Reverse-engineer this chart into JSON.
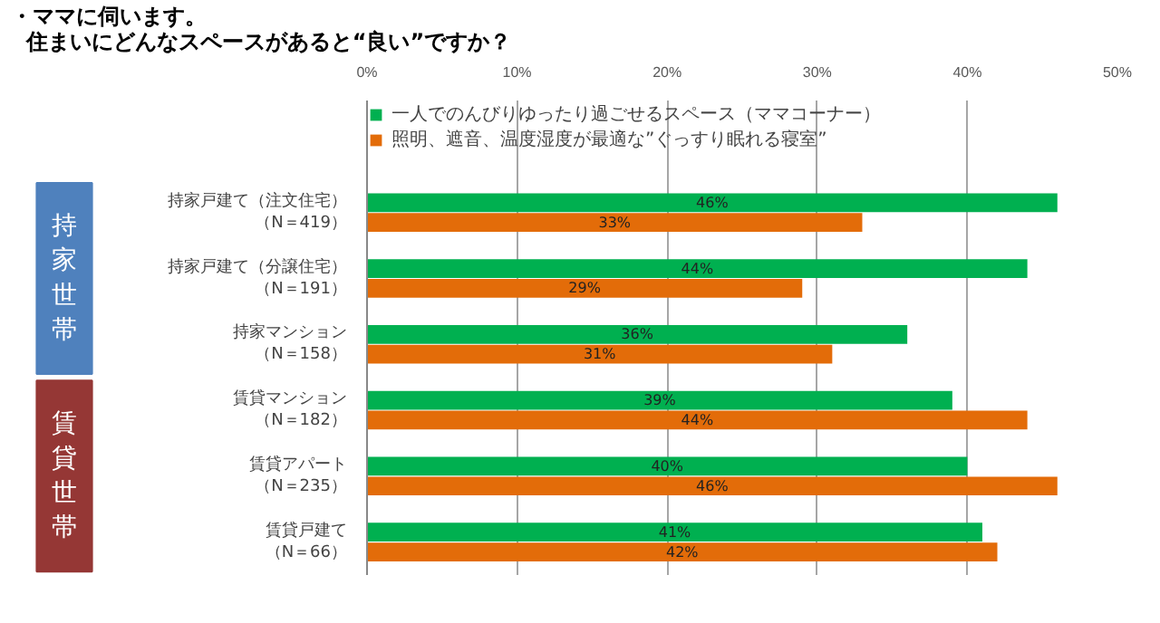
{
  "chart_data": {
    "type": "bar",
    "orientation": "horizontal",
    "title": "・ママに伺います。住まいにどんなスペースがあると“良い”ですか？",
    "categories": [
      "持家戸建て（注文住宅）（N＝419）",
      "持家戸建て（分譲住宅）（N＝191）",
      "持家マンション（N＝158）",
      "賃貸マンション（N＝182）",
      "賃貸アパート（N＝235）",
      "賃貸戸建て（N＝66）"
    ],
    "series": [
      {
        "name": "一人でのんびりゆったり過ごせるスペース（ママコーナー）",
        "color": "#00b050",
        "values": [
          46,
          44,
          36,
          39,
          40,
          41
        ],
        "value_labels": [
          "46%",
          "44%",
          "36%",
          "39%",
          "40%",
          "41%"
        ]
      },
      {
        "name": "照明、遮音、温度湿度が最適な”ぐっすり眠れる寝室”",
        "color": "#e36c09",
        "values": [
          33,
          29,
          31,
          44,
          46,
          42
        ],
        "value_labels": [
          "33%",
          "29%",
          "31%",
          "44%",
          "46%",
          "42%"
        ]
      }
    ],
    "xlim": [
      0,
      50
    ],
    "xticks": [
      {
        "value": 0,
        "label": "0%"
      },
      {
        "value": 10,
        "label": "10%"
      },
      {
        "value": 20,
        "label": "20%"
      },
      {
        "value": 30,
        "label": "30%"
      },
      {
        "value": 40,
        "label": "40%"
      },
      {
        "value": 50,
        "label": "50%"
      }
    ],
    "annotations": [
      "持家世帯",
      "賃貸世帯"
    ],
    "grid": "x",
    "legend": "top"
  }
}
